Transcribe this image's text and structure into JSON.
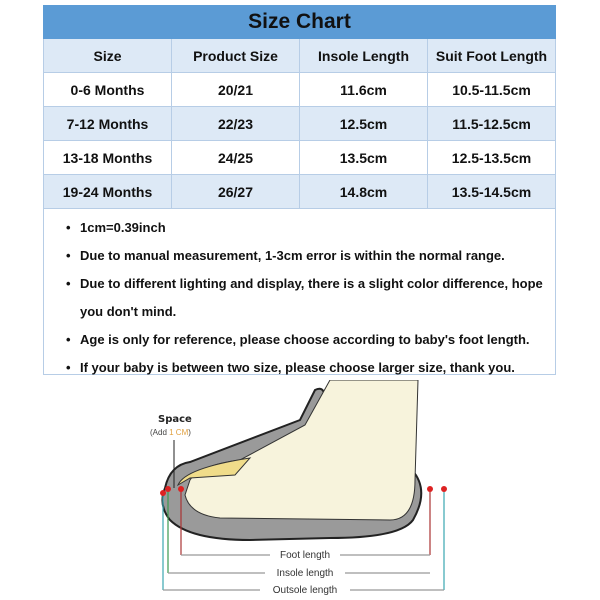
{
  "title": "Size Chart",
  "headers": [
    "Size",
    "Product Size",
    "Insole Length",
    "Suit Foot Length"
  ],
  "rows": [
    [
      "0-6 Months",
      "20/21",
      "11.6cm",
      "10.5-11.5cm"
    ],
    [
      "7-12 Months",
      "22/23",
      "12.5cm",
      "11.5-12.5cm"
    ],
    [
      "13-18 Months",
      "24/25",
      "13.5cm",
      "12.5-13.5cm"
    ],
    [
      "19-24 Months",
      "26/27",
      "14.8cm",
      "13.5-14.5cm"
    ]
  ],
  "notes": [
    "1cm=0.39inch",
    "Due to manual measurement, 1-3cm error is within the normal range.",
    "Due to different lighting and display, there is a slight color difference, hope you don't mind.",
    "Age is only for reference, please choose according to baby's foot length.",
    "If your baby is between two size, please choose larger size, thank you."
  ],
  "diagram": {
    "space_label": "Space",
    "add_prefix": "(Add ",
    "add_value": "1 CM",
    "add_suffix": ")",
    "foot_length": "Foot length",
    "insole_length": "Insole length",
    "outsole_length": "Outsole length"
  },
  "colors": {
    "header_blue": "#5b9bd5",
    "row_tint": "#dde9f6"
  }
}
